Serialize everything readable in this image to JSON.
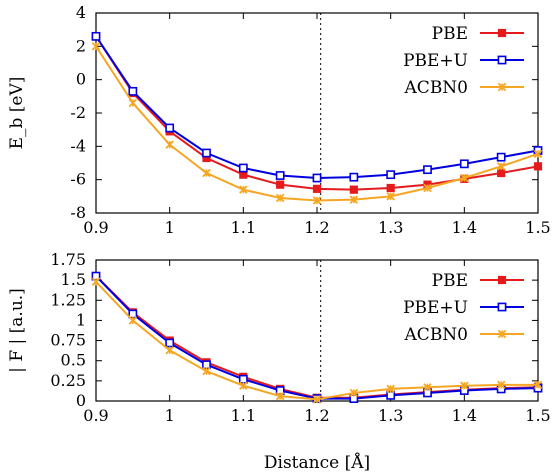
{
  "chart_data": [
    {
      "type": "line",
      "ylabel": "E_b [eV]",
      "xlim": [
        0.9,
        1.5
      ],
      "ylim": [
        -8,
        4
      ],
      "xticks": [
        "0.9",
        "1",
        "1.1",
        "1.2",
        "1.3",
        "1.4",
        "1.5"
      ],
      "yticks": [
        "4",
        "2",
        "0",
        "-2",
        "-4",
        "-6",
        "-8"
      ],
      "vline_x": 1.205,
      "legend_position": "top-right",
      "x": [
        0.9,
        0.95,
        1.0,
        1.05,
        1.1,
        1.15,
        1.2,
        1.25,
        1.3,
        1.35,
        1.4,
        1.45,
        1.5
      ],
      "series": [
        {
          "name": "PBE",
          "color": "#e41a1c",
          "marker": "filled-square",
          "values": [
            2.6,
            -0.8,
            -3.1,
            -4.7,
            -5.7,
            -6.3,
            -6.55,
            -6.6,
            -6.5,
            -6.3,
            -5.95,
            -5.6,
            -5.2
          ]
        },
        {
          "name": "PBE+U",
          "color": "#0000e0",
          "marker": "open-square",
          "values": [
            2.6,
            -0.7,
            -2.9,
            -4.4,
            -5.3,
            -5.75,
            -5.9,
            -5.85,
            -5.7,
            -5.4,
            -5.05,
            -4.65,
            -4.25
          ]
        },
        {
          "name": "ACBN0",
          "color": "#f5a623",
          "marker": "x",
          "values": [
            2.0,
            -1.4,
            -3.9,
            -5.6,
            -6.6,
            -7.1,
            -7.25,
            -7.2,
            -7.0,
            -6.5,
            -5.9,
            -5.2,
            -4.45
          ]
        }
      ]
    },
    {
      "type": "line",
      "ylabel": "| F | [a.u.]",
      "xlabel": "Distance [Å]",
      "xlim": [
        0.9,
        1.5
      ],
      "ylim": [
        0,
        1.75
      ],
      "xticks": [
        "0.9",
        "1",
        "1.1",
        "1.2",
        "1.3",
        "1.4",
        "1.5"
      ],
      "yticks": [
        "1.75",
        "1.5",
        "1.25",
        "1",
        "0.75",
        "0.5",
        "0.25",
        "0"
      ],
      "vline_x": 1.205,
      "legend_position": "top-right",
      "x": [
        0.9,
        0.95,
        1.0,
        1.05,
        1.1,
        1.15,
        1.2,
        1.25,
        1.3,
        1.35,
        1.4,
        1.45,
        1.5
      ],
      "series": [
        {
          "name": "PBE",
          "color": "#e41a1c",
          "marker": "filled-square",
          "values": [
            1.55,
            1.1,
            0.75,
            0.48,
            0.3,
            0.15,
            0.04,
            0.04,
            0.08,
            0.11,
            0.14,
            0.16,
            0.17
          ]
        },
        {
          "name": "PBE+U",
          "color": "#0000e0",
          "marker": "open-square",
          "values": [
            1.55,
            1.08,
            0.72,
            0.45,
            0.27,
            0.13,
            0.03,
            0.03,
            0.07,
            0.1,
            0.13,
            0.15,
            0.16
          ]
        },
        {
          "name": "ACBN0",
          "color": "#f5a623",
          "marker": "x",
          "values": [
            1.48,
            1.0,
            0.63,
            0.37,
            0.19,
            0.06,
            0.02,
            0.1,
            0.15,
            0.17,
            0.19,
            0.2,
            0.2
          ]
        }
      ]
    }
  ]
}
